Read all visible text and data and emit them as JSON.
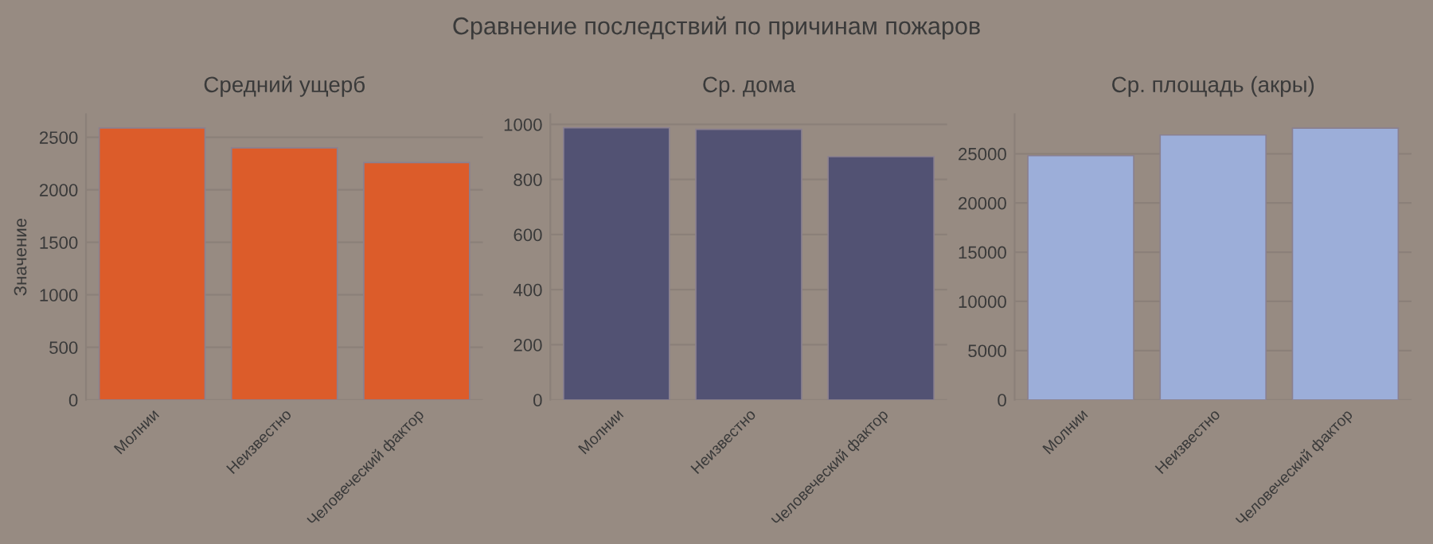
{
  "chart_data": [
    {
      "type": "bar",
      "title": "Средний ущерб",
      "ylabel": "Значение",
      "annotations": [
        "Сравнение последствий по причинам пожаров"
      ],
      "categories": [
        "Молнии",
        "Неизвестно",
        "Человеческий фактор"
      ],
      "values": [
        2590,
        2400,
        2260
      ],
      "color": "#dc5c2a",
      "ylim": [
        0,
        2720
      ],
      "yticks": [
        0,
        500,
        1000,
        1500,
        2000,
        2500
      ],
      "grid": "y"
    },
    {
      "type": "bar",
      "title": "Ср. дома",
      "categories": [
        "Молнии",
        "Неизвестно",
        "Человеческий фактор"
      ],
      "values": [
        988,
        982,
        883
      ],
      "color": "#525273",
      "ylim": [
        0,
        1037
      ],
      "yticks": [
        0,
        200,
        400,
        600,
        800,
        1000
      ],
      "grid": "y"
    },
    {
      "type": "bar",
      "title": "Ср. площадь (акры)",
      "categories": [
        "Молнии",
        "Неизвестно",
        "Человеческий фактор"
      ],
      "values": [
        24800,
        26900,
        27600
      ],
      "color": "#9caed9",
      "ylim": [
        0,
        29010
      ],
      "yticks": [
        0,
        5000,
        10000,
        15000,
        20000,
        25000
      ],
      "grid": "y"
    }
  ]
}
